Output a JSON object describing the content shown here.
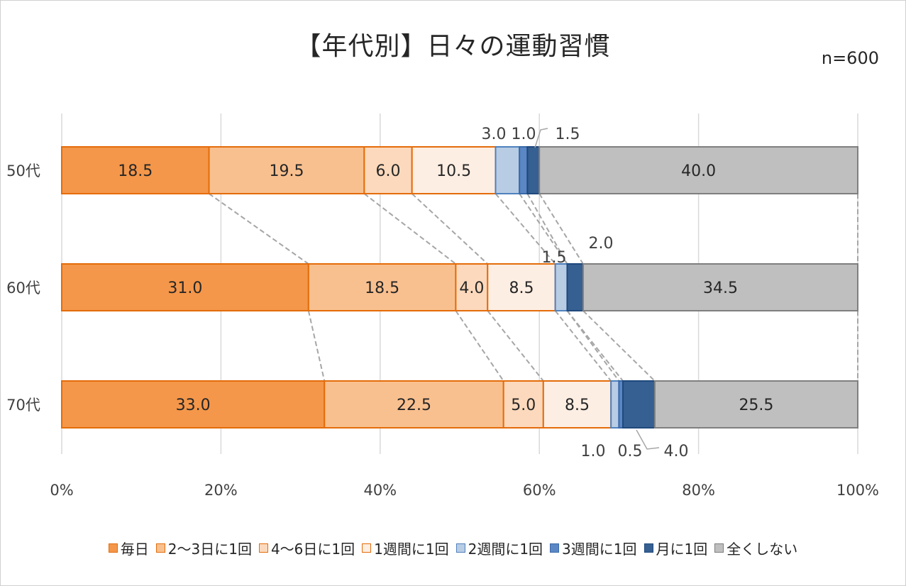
{
  "chart_data": {
    "type": "bar",
    "orientation": "horizontal",
    "stacked": true,
    "percent": true,
    "title": "【年代別】日々の運動習慣",
    "subtitle": "n=600",
    "categories": [
      "50代",
      "60代",
      "70代"
    ],
    "xticks": [
      "0%",
      "20%",
      "40%",
      "60%",
      "80%",
      "100%"
    ],
    "xlim": [
      0,
      100
    ],
    "grid": true,
    "legend_position": "bottom",
    "series": [
      {
        "name": "毎日",
        "values": [
          18.5,
          31.0,
          33.0
        ],
        "labels": [
          "18.5",
          "31.0",
          "33.0"
        ],
        "fill": "#f4974a",
        "stroke": "#e46c0a"
      },
      {
        "name": "2～3日に1回",
        "values": [
          19.5,
          18.5,
          22.5
        ],
        "labels": [
          "19.5",
          "18.5",
          "22.5"
        ],
        "fill": "#f9c08f",
        "stroke": "#e46c0a"
      },
      {
        "name": "4～6日に1回",
        "values": [
          6.0,
          4.0,
          5.0
        ],
        "labels": [
          "6.0",
          "4.0",
          "5.0"
        ],
        "fill": "#fcd9bc",
        "stroke": "#e46c0a"
      },
      {
        "name": "1週間に1回",
        "values": [
          10.5,
          8.5,
          8.5
        ],
        "labels": [
          "10.5",
          "8.5",
          "8.5"
        ],
        "fill": "#fdeee3",
        "stroke": "#e46c0a"
      },
      {
        "name": "2週間に1回",
        "values": [
          3.0,
          1.5,
          1.0
        ],
        "labels": [
          "3.0",
          "1.5",
          "1.0"
        ],
        "fill": "#b8cce4",
        "stroke": "#4f81bd"
      },
      {
        "name": "3週間に1回",
        "values": [
          1.0,
          0.0,
          0.5
        ],
        "labels": [
          "1.0",
          "",
          "0.5"
        ],
        "fill": "#5b87c5",
        "stroke": "#3a6aa8"
      },
      {
        "name": "月に1回",
        "values": [
          1.5,
          2.0,
          4.0
        ],
        "labels": [
          "1.5",
          "2.0",
          "4.0"
        ],
        "fill": "#376092",
        "stroke": "#1f497d"
      },
      {
        "name": "全くしない",
        "values": [
          40.0,
          34.5,
          25.5
        ],
        "labels": [
          "40.0",
          "34.5",
          "25.5"
        ],
        "fill": "#bfbfbf",
        "stroke": "#7f7f7f"
      }
    ]
  }
}
